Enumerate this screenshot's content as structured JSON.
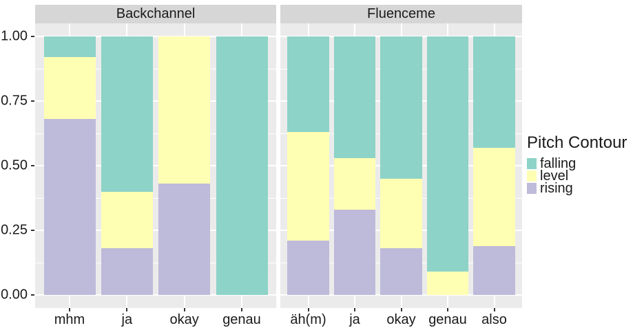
{
  "chart_data": {
    "type": "bar",
    "variant": "stacked-proportion-faceted",
    "title": "",
    "xlabel": "",
    "ylabel": "",
    "ylim": [
      0,
      1
    ],
    "grid": true,
    "y_ticks": [
      {
        "label": "1.00",
        "value": 1.0
      },
      {
        "label": "0.75",
        "value": 0.75
      },
      {
        "label": "0.50",
        "value": 0.5
      },
      {
        "label": "0.25",
        "value": 0.25
      },
      {
        "label": "0.00",
        "value": 0.0
      }
    ],
    "legend": {
      "title": "Pitch Contour",
      "position": "right",
      "items": [
        {
          "label": "falling",
          "color": "#8DD3C7"
        },
        {
          "label": "level",
          "color": "#FFFFB3"
        },
        {
          "label": "rising",
          "color": "#BEBADA"
        }
      ]
    },
    "facets": [
      {
        "label": "Backchannel",
        "categories": [
          "mhm",
          "ja",
          "okay",
          "genau"
        ],
        "series": [
          {
            "name": "falling",
            "values": [
              0.08,
              0.6,
              0.0,
              1.0
            ]
          },
          {
            "name": "level",
            "values": [
              0.24,
              0.22,
              0.57,
              0.0
            ]
          },
          {
            "name": "rising",
            "values": [
              0.68,
              0.18,
              0.43,
              0.0
            ]
          }
        ]
      },
      {
        "label": "Fluenceme",
        "categories": [
          "äh(m)",
          "ja",
          "okay",
          "genau",
          "also"
        ],
        "series": [
          {
            "name": "falling",
            "values": [
              0.37,
              0.47,
              0.55,
              0.91,
              0.43
            ]
          },
          {
            "name": "level",
            "values": [
              0.42,
              0.2,
              0.27,
              0.09,
              0.38
            ]
          },
          {
            "name": "rising",
            "values": [
              0.21,
              0.33,
              0.18,
              0.0,
              0.19
            ]
          }
        ]
      }
    ],
    "colors": {
      "panel_background": "#EBEBEB",
      "strip_background": "#D6D6D6",
      "gridline": "#FFFFFF",
      "tick": "#333333",
      "text": "#1A1A1A",
      "figure_background": "#FFFFFF"
    }
  }
}
